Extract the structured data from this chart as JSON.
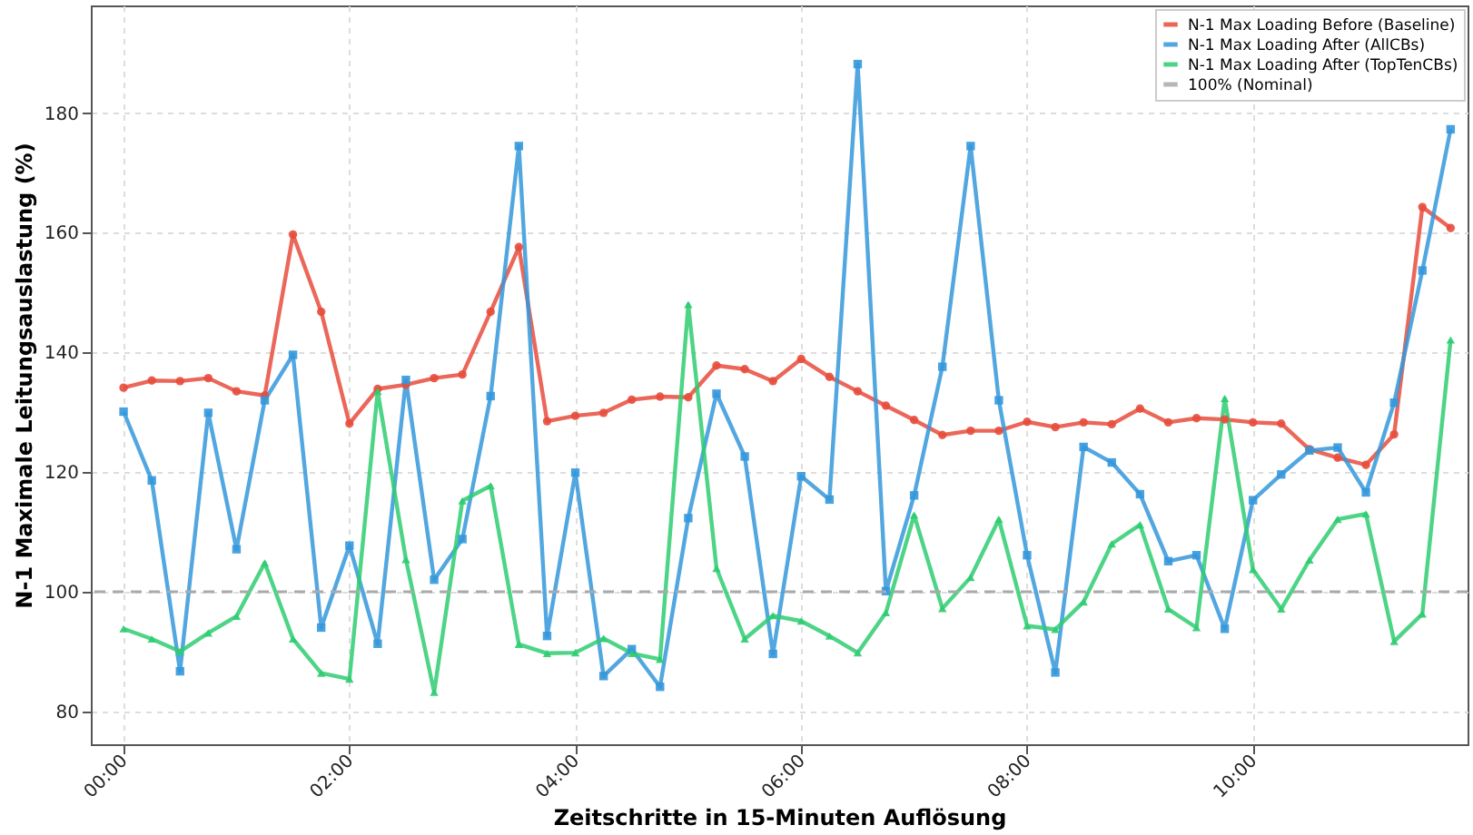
{
  "chart_data": {
    "type": "line",
    "xlabel": "Zeitschritte in 15-Minuten Auflösung",
    "ylabel": "N-1 Maximale Leitungsauslastung (%)",
    "x": [
      0,
      0.25,
      0.5,
      0.75,
      1,
      1.25,
      1.5,
      1.75,
      2,
      2.25,
      2.5,
      2.75,
      3,
      3.25,
      3.5,
      3.75,
      4,
      4.25,
      4.5,
      4.75,
      5,
      5.25,
      5.5,
      5.75,
      6,
      6.25,
      6.5,
      6.75,
      7,
      7.25,
      7.5,
      7.75,
      8,
      8.25,
      8.5,
      8.75,
      9,
      9.25,
      9.5,
      9.75,
      10,
      10.25,
      10.5,
      10.75,
      11,
      11.25,
      11.5,
      11.75
    ],
    "series": [
      {
        "name": "N-1 Max Loading Before (Baseline)",
        "color": "#e74c3c",
        "marker": "circle",
        "values": [
          134.1,
          135.3,
          135.2,
          135.7,
          133.5,
          132.8,
          159.7,
          146.8,
          128.1,
          133.9,
          134.6,
          135.7,
          136.3,
          146.8,
          157.6,
          128.5,
          129.4,
          129.9,
          132.1,
          132.6,
          132.5,
          137.8,
          137.2,
          135.2,
          138.9,
          135.9,
          133.5,
          131.1,
          128.7,
          126.2,
          126.9,
          126.9,
          128.4,
          127.5,
          128.3,
          128.0,
          130.6,
          128.3,
          129.0,
          128.8,
          128.3,
          128.1,
          123.8,
          122.4,
          121.2,
          126.3,
          164.3,
          160.8
        ]
      },
      {
        "name": "N-1 Max Loading After (AllCBs)",
        "color": "#3498db",
        "marker": "square",
        "values": [
          130.1,
          118.6,
          86.7,
          129.9,
          107.1,
          132.0,
          139.6,
          94.0,
          107.7,
          91.3,
          135.4,
          102.0,
          108.8,
          132.7,
          174.5,
          92.6,
          119.9,
          85.9,
          90.4,
          84.1,
          112.3,
          133.1,
          122.6,
          89.6,
          119.3,
          115.4,
          188.2,
          100.1,
          116.1,
          137.6,
          174.5,
          132.0,
          106.1,
          86.5,
          124.2,
          121.6,
          116.3,
          105.1,
          106.1,
          93.8,
          115.3,
          119.6,
          123.6,
          124.1,
          116.6,
          131.6,
          153.7,
          177.3
        ]
      },
      {
        "name": "N-1 Max Loading After (TopTenCBs)",
        "color": "#2ecc71",
        "marker": "triangle",
        "values": [
          93.8,
          92.1,
          90.0,
          93.1,
          95.9,
          104.8,
          92.1,
          86.4,
          85.4,
          133.5,
          105.4,
          83.2,
          115.2,
          117.7,
          91.2,
          89.7,
          89.8,
          92.2,
          89.7,
          88.7,
          148.0,
          103.9,
          92.1,
          96.0,
          95.1,
          92.6,
          89.8,
          96.5,
          112.8,
          97.2,
          102.4,
          112.1,
          94.3,
          93.7,
          98.3,
          108.0,
          111.2,
          97.1,
          94.0,
          132.3,
          103.7,
          97.1,
          105.3,
          112.1,
          113.0,
          91.7,
          96.3,
          142.1
        ]
      }
    ],
    "ref_lines": [
      {
        "axis": "y",
        "value": 100,
        "label": "100% (Nominal)",
        "color": "#aaaaaa",
        "line_style": "dashed"
      }
    ],
    "xlim": [
      -0.29,
      11.9
    ],
    "ylim": [
      74.5,
      198
    ],
    "xticks": [
      {
        "value": 0,
        "label": "00:00"
      },
      {
        "value": 2,
        "label": "02:00"
      },
      {
        "value": 4,
        "label": "04:00"
      },
      {
        "value": 6,
        "label": "06:00"
      },
      {
        "value": 8,
        "label": "08:00"
      },
      {
        "value": 10,
        "label": "10:00"
      }
    ],
    "yticks": [
      80,
      100,
      120,
      140,
      160,
      180
    ],
    "grid": true,
    "legend": "top right",
    "line_style": "solid"
  }
}
